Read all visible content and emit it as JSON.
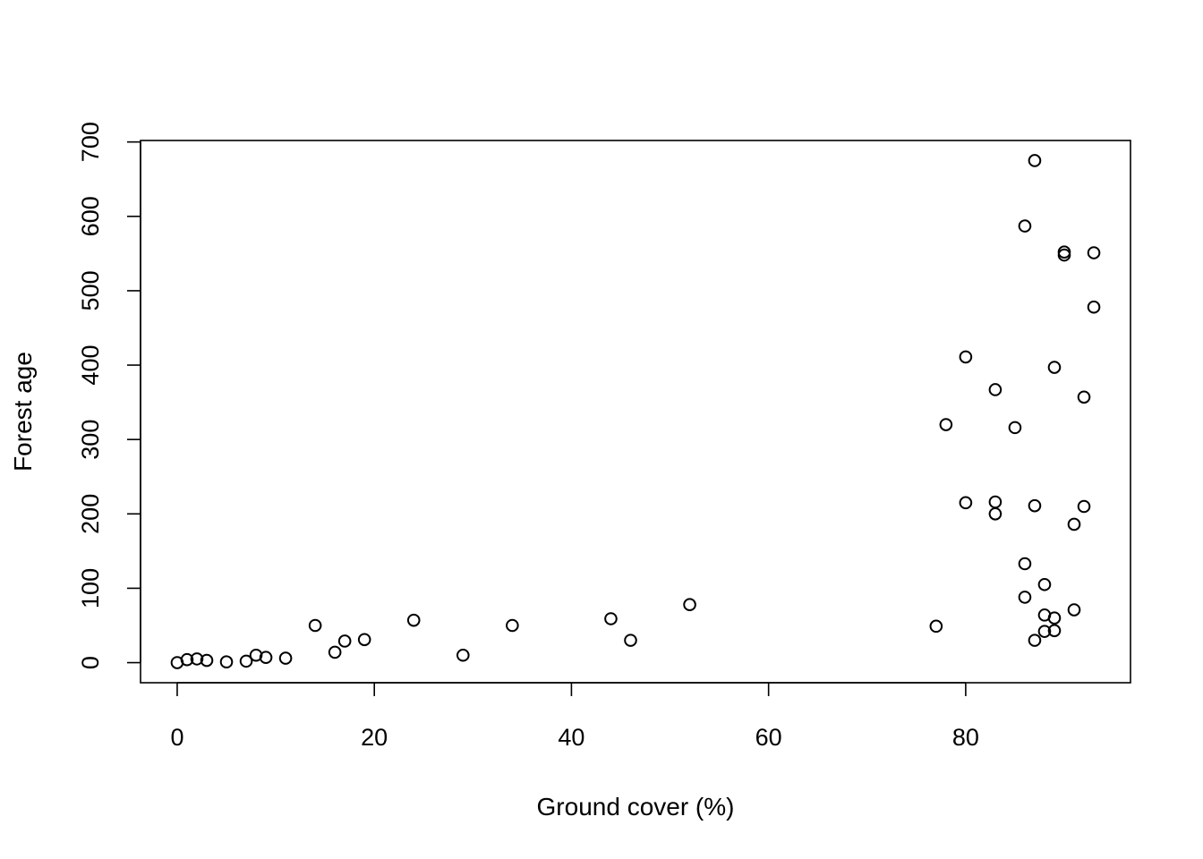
{
  "chart_data": {
    "type": "scatter",
    "title": "",
    "xlabel": "Ground cover (%)",
    "ylabel": "Forest age",
    "xlim": [
      -3.72,
      96.72
    ],
    "ylim": [
      -27,
      702
    ],
    "xticks": [
      0,
      20,
      40,
      60,
      80
    ],
    "yticks": [
      0,
      100,
      200,
      300,
      400,
      500,
      600,
      700
    ],
    "grid": false,
    "legend": "none",
    "marker": "open-circle",
    "point_color": "#000000",
    "points": [
      {
        "x": 0,
        "y": 0
      },
      {
        "x": 1,
        "y": 4
      },
      {
        "x": 2,
        "y": 5
      },
      {
        "x": 3,
        "y": 3
      },
      {
        "x": 5,
        "y": 1
      },
      {
        "x": 7,
        "y": 2
      },
      {
        "x": 8,
        "y": 10
      },
      {
        "x": 9,
        "y": 7
      },
      {
        "x": 11,
        "y": 6
      },
      {
        "x": 14,
        "y": 50
      },
      {
        "x": 16,
        "y": 14
      },
      {
        "x": 17,
        "y": 29
      },
      {
        "x": 19,
        "y": 31
      },
      {
        "x": 24,
        "y": 57
      },
      {
        "x": 29,
        "y": 10
      },
      {
        "x": 34,
        "y": 50
      },
      {
        "x": 44,
        "y": 59
      },
      {
        "x": 46,
        "y": 30
      },
      {
        "x": 52,
        "y": 78
      },
      {
        "x": 77,
        "y": 49
      },
      {
        "x": 78,
        "y": 320
      },
      {
        "x": 80,
        "y": 411
      },
      {
        "x": 80,
        "y": 215
      },
      {
        "x": 83,
        "y": 367
      },
      {
        "x": 83,
        "y": 216
      },
      {
        "x": 83,
        "y": 200
      },
      {
        "x": 85,
        "y": 316
      },
      {
        "x": 86,
        "y": 587
      },
      {
        "x": 86,
        "y": 133
      },
      {
        "x": 86,
        "y": 88
      },
      {
        "x": 87,
        "y": 675
      },
      {
        "x": 87,
        "y": 211
      },
      {
        "x": 87,
        "y": 30
      },
      {
        "x": 88,
        "y": 105
      },
      {
        "x": 88,
        "y": 64
      },
      {
        "x": 88,
        "y": 42
      },
      {
        "x": 89,
        "y": 397
      },
      {
        "x": 89,
        "y": 60
      },
      {
        "x": 89,
        "y": 43
      },
      {
        "x": 90,
        "y": 552
      },
      {
        "x": 90,
        "y": 548
      },
      {
        "x": 91,
        "y": 186
      },
      {
        "x": 91,
        "y": 71
      },
      {
        "x": 92,
        "y": 357
      },
      {
        "x": 92,
        "y": 210
      },
      {
        "x": 93,
        "y": 551
      },
      {
        "x": 93,
        "y": 478
      }
    ]
  }
}
